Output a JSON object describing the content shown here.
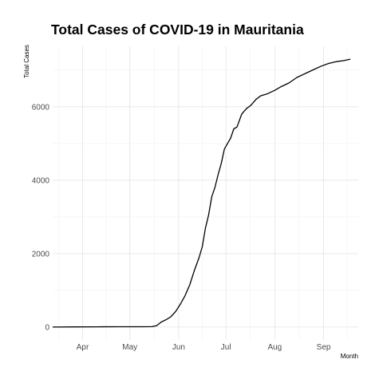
{
  "chart_data": {
    "type": "line",
    "title": "Total Cases of COVID-19 in Mauritania",
    "xlabel": "Month",
    "ylabel": "Total Cases",
    "x_ticks": [
      "Apr",
      "May",
      "Jun",
      "Jul",
      "Aug",
      "Sep"
    ],
    "x_tick_dates": [
      "2020-04-01",
      "2020-05-01",
      "2020-06-01",
      "2020-07-01",
      "2020-08-01",
      "2020-09-01"
    ],
    "y_ticks": [
      0,
      2000,
      4000,
      6000
    ],
    "xlim": [
      "2020-03-13",
      "2020-09-23"
    ],
    "ylim": [
      -350,
      7650
    ],
    "grid": true,
    "series": [
      {
        "x": [
          "2020-03-13",
          "2020-03-27",
          "2020-04-10",
          "2020-04-24",
          "2020-05-08",
          "2020-05-15",
          "2020-05-18",
          "2020-05-21",
          "2020-05-24",
          "2020-05-27",
          "2020-05-30",
          "2020-06-02",
          "2020-06-05",
          "2020-06-08",
          "2020-06-11",
          "2020-06-14",
          "2020-06-16",
          "2020-06-18",
          "2020-06-20",
          "2020-06-22",
          "2020-06-24",
          "2020-06-26",
          "2020-06-28",
          "2020-06-30",
          "2020-07-02",
          "2020-07-04",
          "2020-07-06",
          "2020-07-08",
          "2020-07-11",
          "2020-07-14",
          "2020-07-17",
          "2020-07-20",
          "2020-07-23",
          "2020-07-27",
          "2020-08-01",
          "2020-08-05",
          "2020-08-10",
          "2020-08-15",
          "2020-08-20",
          "2020-08-25",
          "2020-08-30",
          "2020-09-04",
          "2020-09-09",
          "2020-09-14",
          "2020-09-18"
        ],
        "values": [
          0,
          4,
          7,
          8,
          9,
          10,
          40,
          140,
          200,
          280,
          420,
          620,
          850,
          1150,
          1550,
          1900,
          2200,
          2700,
          3050,
          3550,
          3800,
          4150,
          4450,
          4850,
          5000,
          5150,
          5400,
          5450,
          5800,
          5950,
          6050,
          6200,
          6300,
          6350,
          6450,
          6550,
          6650,
          6800,
          6900,
          7000,
          7100,
          7180,
          7230,
          7260,
          7300
        ]
      }
    ]
  }
}
